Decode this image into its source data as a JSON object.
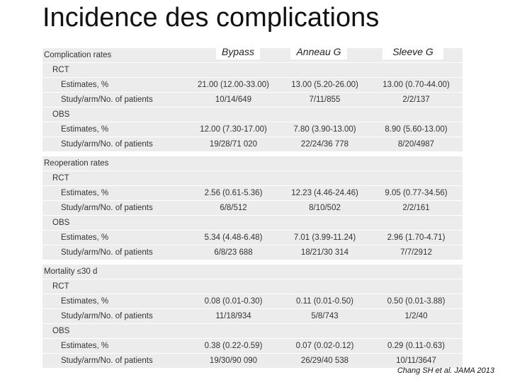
{
  "header": {
    "title": "Incidence des complications"
  },
  "columns": [
    "Bypass",
    "Anneau G",
    "Sleeve G"
  ],
  "sections": [
    {
      "title": "Complication rates",
      "groups": [
        {
          "label": "RCT",
          "rows": [
            [
              "Estimates, %",
              "21.00 (12.00-33.00)",
              "13.00 (5.20-26.00)",
              "13.00 (0.70-44.00)"
            ],
            [
              "Study/arm/No. of patients",
              "10/14/649",
              "7/11/855",
              "2/2/137"
            ]
          ]
        },
        {
          "label": "OBS",
          "rows": [
            [
              "Estimates, %",
              "12.00 (7.30-17.00)",
              "7.80 (3.90-13.00)",
              "8.90 (5.60-13.00)"
            ],
            [
              "Study/arm/No. of patients",
              "19/28/71 020",
              "22/24/36 778",
              "8/20/4987"
            ]
          ]
        }
      ]
    },
    {
      "title": "Reoperation rates",
      "groups": [
        {
          "label": "RCT",
          "rows": [
            [
              "Estimates, %",
              "2.56 (0.61-5.36)",
              "12.23 (4.46-24.46)",
              "9.05 (0.77-34.56)"
            ],
            [
              "Study/arm/No. of patients",
              "6/8/512",
              "8/10/502",
              "2/2/161"
            ]
          ]
        },
        {
          "label": "OBS",
          "rows": [
            [
              "Estimates, %",
              "5.34 (4.48-6.48)",
              "7.01 (3.99-11.24)",
              "2.96 (1.70-4.71)"
            ],
            [
              "Study/arm/No. of patients",
              "6/8/23 688",
              "18/21/30 314",
              "7/7/2912"
            ]
          ]
        }
      ]
    },
    {
      "title": "Mortality ≤30 d",
      "groups": [
        {
          "label": "RCT",
          "rows": [
            [
              "Estimates, %",
              "0.08 (0.01-0.30)",
              "0.11 (0.01-0.50)",
              "0.50 (0.01-3.88)"
            ],
            [
              "Study/arm/No. of patients",
              "11/18/934",
              "5/8/743",
              "1/2/40"
            ]
          ]
        },
        {
          "label": "OBS",
          "rows": [
            [
              "Estimates, %",
              "0.38 (0.22-0.59)",
              "0.07 (0.02-0.12)",
              "0.29 (0.11-0.63)"
            ],
            [
              "Study/arm/No. of patients",
              "19/30/90 090",
              "26/29/40 538",
              "10/11/3647"
            ]
          ]
        }
      ]
    }
  ],
  "footer": {
    "citation": "Chang SH et al. JAMA 2013"
  }
}
